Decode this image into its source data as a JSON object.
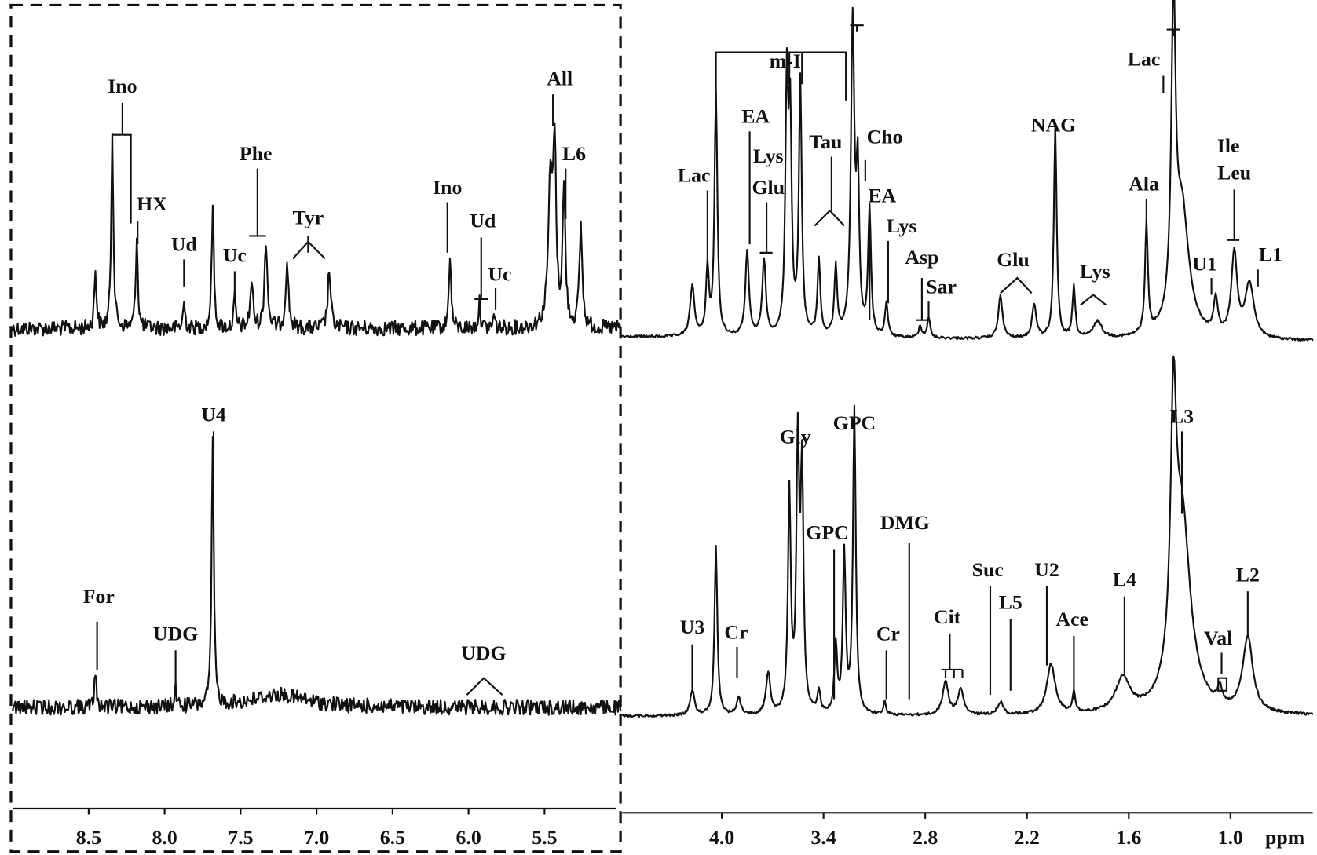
{
  "axis": {
    "left_ticks": [
      "8.5",
      "8.0",
      "7.5",
      "7.0",
      "6.5",
      "6.0",
      "5.5"
    ],
    "right_ticks": [
      "4.0",
      "3.4",
      "2.8",
      "2.2",
      "1.6",
      "1.0"
    ],
    "unit": "ppm"
  },
  "top_labels": [
    "Ino",
    "HX",
    "Ud",
    "Uc",
    "Phe",
    "Tyr",
    "Ino",
    "Ud",
    "Uc",
    "All",
    "L6",
    "Lac",
    "m-I",
    "EA",
    "Lys",
    "Glu",
    "Tau",
    "Cho",
    "EA",
    "Lys",
    "Asp",
    "Sar",
    "NAG",
    "Glu",
    "Ala",
    "Lac",
    "Ile",
    "Leu",
    "Lys",
    "U1",
    "L1"
  ],
  "bottom_labels": [
    "For",
    "UDG",
    "U4",
    "UDG",
    "U3",
    "Cr",
    "Gly",
    "GPC",
    "GPC",
    "DMG",
    "Cr",
    "Cit",
    "Suc",
    "L5",
    "U2",
    "Ace",
    "L4",
    "L3",
    "Val",
    "L2"
  ]
}
